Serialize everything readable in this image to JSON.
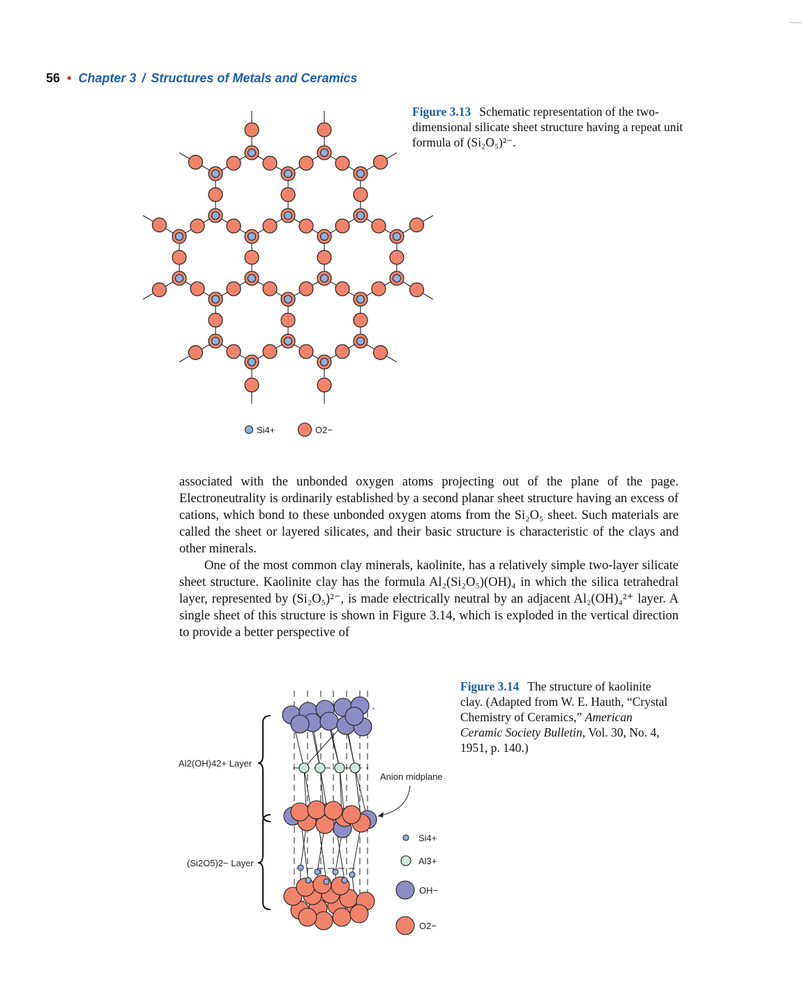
{
  "running_head": {
    "page_number": "56",
    "chapter": "Chapter 3",
    "title": "Structures of Metals and Ceramics"
  },
  "figure_3_13": {
    "label": "Figure 3.13",
    "caption": "Schematic representation of the two-dimensional silicate sheet structure having a repeat unit formula of (Si₂O₅)²⁻.",
    "legend": {
      "si": "Si4+",
      "o": "O2−"
    },
    "colors": {
      "oxygen": "#f0836a",
      "silicon": "#8fb0dd"
    }
  },
  "body": {
    "paragraph_1": "associated with the unbonded oxygen atoms projecting out of the plane of the page. Electroneutrality is ordinarily established by a second planar sheet structure having an excess of cations, which bond to these unbonded oxygen atoms from the Si₂O₅ sheet. Such materials are called the sheet or layered silicates, and their basic structure is characteristic of the clays and other minerals.",
    "paragraph_2": "One of the most common clay minerals, kaolinite, has a relatively simple two-layer silicate sheet structure. Kaolinite clay has the formula Al₂(Si₂O₅)(OH)₄ in which the silica tetrahedral layer, represented by (Si₂O₅)²⁻, is made electrically neutral by an adjacent Al₂(OH)₄²⁺ layer. A single sheet of this structure is shown in Figure 3.14, which is exploded in the vertical direction to provide a better perspective of"
  },
  "figure_3_14": {
    "label": "Figure 3.14",
    "caption_plain": "The structure of kaolinite clay. (Adapted from W. E. Hauth, “Crystal Chemistry of Ceramics,”",
    "caption_journal": "American Ceramic Society Bulletin",
    "caption_end": ", Vol. 30, No. 4, 1951, p. 140.)",
    "labels": {
      "al_layer": "Al2(OH)42+ Layer",
      "si_layer": "(Si2O5)2− Layer",
      "anion_midplane": "Anion midplane"
    },
    "legend": {
      "si": "Si4+",
      "al": "Al3+",
      "oh": "OH−",
      "o": "O2−"
    },
    "colors": {
      "oh": "#8d8cc6",
      "al": "#cfe8da",
      "si": "#8fb0dd",
      "o": "#f0836a"
    }
  }
}
